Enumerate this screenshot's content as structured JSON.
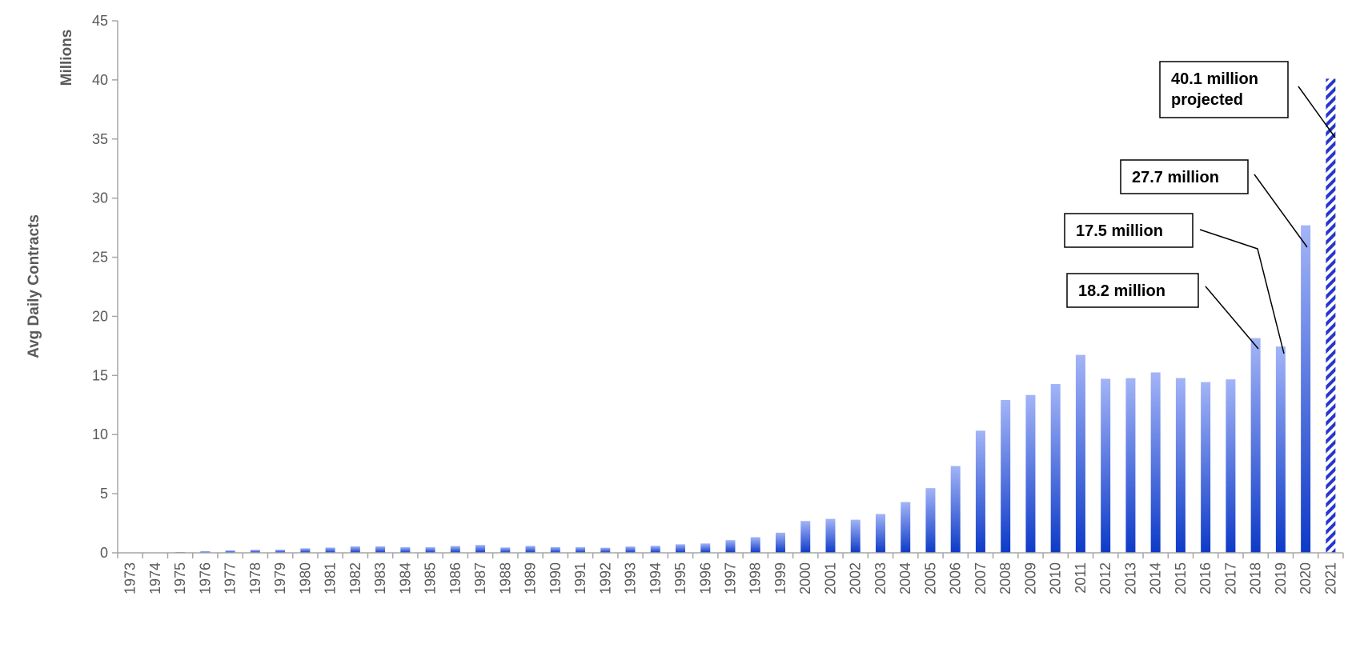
{
  "chart_data": {
    "type": "bar",
    "title": "",
    "xlabel": "",
    "ylabel": "Avg Daily Contracts",
    "y_unit_label": "Millions",
    "ylim": [
      0,
      45
    ],
    "yticks": [
      0,
      5,
      10,
      15,
      20,
      25,
      30,
      35,
      40,
      45
    ],
    "grid": false,
    "legend": "none",
    "categories": [
      "1973",
      "1974",
      "1975",
      "1976",
      "1977",
      "1978",
      "1979",
      "1980",
      "1981",
      "1982",
      "1983",
      "1984",
      "1985",
      "1986",
      "1987",
      "1988",
      "1989",
      "1990",
      "1991",
      "1992",
      "1993",
      "1994",
      "1995",
      "1996",
      "1997",
      "1998",
      "1999",
      "2000",
      "2001",
      "2002",
      "2003",
      "2004",
      "2005",
      "2006",
      "2007",
      "2008",
      "2009",
      "2010",
      "2011",
      "2012",
      "2013",
      "2014",
      "2015",
      "2016",
      "2017",
      "2018",
      "2019",
      "2020",
      "2021"
    ],
    "values": [
      0.0,
      0.03,
      0.07,
      0.13,
      0.2,
      0.25,
      0.26,
      0.38,
      0.44,
      0.54,
      0.54,
      0.47,
      0.47,
      0.57,
      0.66,
      0.45,
      0.58,
      0.48,
      0.47,
      0.43,
      0.53,
      0.59,
      0.72,
      0.79,
      1.07,
      1.32,
      1.7,
      2.69,
      2.87,
      2.8,
      3.28,
      4.29,
      5.47,
      7.34,
      10.33,
      12.93,
      13.35,
      14.28,
      16.74,
      14.72,
      14.77,
      15.26,
      14.78,
      14.44,
      14.67,
      18.16,
      17.45,
      27.7,
      40.1
    ],
    "projected_categories": [
      "2021"
    ],
    "colors": {
      "bar_top": "#a3b4f7",
      "bar_bottom": "#0d3ac7",
      "projected": "#2636cc",
      "axis": "#a6a6a6"
    },
    "annotations": [
      {
        "text_lines": [
          "40.1 million",
          "projected"
        ],
        "category": "2021"
      },
      {
        "text_lines": [
          "27.7 million"
        ],
        "category": "2020"
      },
      {
        "text_lines": [
          "17.5 million"
        ],
        "category": "2019"
      },
      {
        "text_lines": [
          "18.2 million"
        ],
        "category": "2018"
      }
    ]
  }
}
